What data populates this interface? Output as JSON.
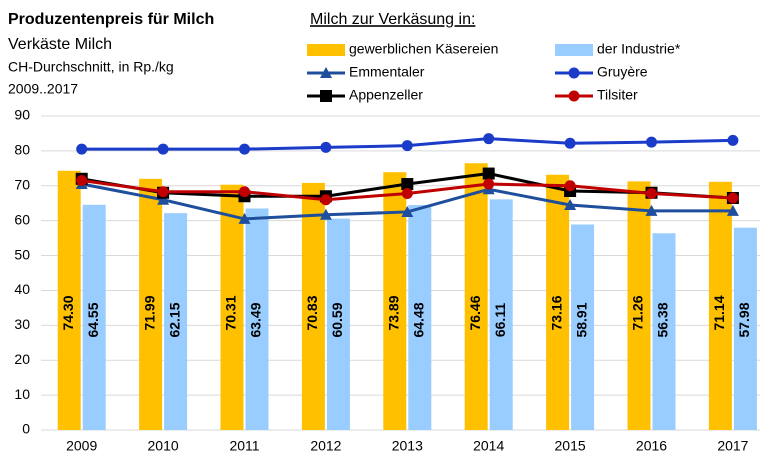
{
  "chart_data": {
    "type": "bar-line",
    "title": "Produzentenpreis für Milch",
    "subtitle": [
      "Verkäste Milch",
      "CH-Durchschnitt,  in Rp./kg",
      "2009..2017"
    ],
    "legend_title": "Milch zur Verkäsung in:",
    "categories": [
      "2009",
      "2010",
      "2011",
      "2012",
      "2013",
      "2014",
      "2015",
      "2016",
      "2017"
    ],
    "ylim": [
      0,
      90
    ],
    "yticks": [
      0,
      10,
      20,
      30,
      40,
      50,
      60,
      70,
      80,
      90
    ],
    "grid": true,
    "series": [
      {
        "name": "gewerblichen Käsereien",
        "kind": "bar",
        "color": "#ffc000",
        "values": [
          74.3,
          71.99,
          70.31,
          70.83,
          73.89,
          76.46,
          73.16,
          71.26,
          71.14
        ],
        "value_labels": [
          "74.30",
          "71.99",
          "70.31",
          "70.83",
          "73.89",
          "76.46",
          "73.16",
          "71.26",
          "71.14"
        ]
      },
      {
        "name": "der Industrie*",
        "kind": "bar",
        "color": "#99ccff",
        "values": [
          64.55,
          62.15,
          63.49,
          60.59,
          64.48,
          66.11,
          58.91,
          56.38,
          57.98
        ],
        "value_labels": [
          "64.55",
          "62.15",
          "63.49",
          "60.59",
          "64.48",
          "66.11",
          "58.91",
          "56.38",
          "57.98"
        ]
      },
      {
        "name": "Emmentaler",
        "kind": "line",
        "marker": "triangle",
        "color": "#1f4e9c",
        "values": [
          70.5,
          66,
          60.5,
          61.7,
          62.5,
          69,
          64.5,
          62.8,
          62.8
        ]
      },
      {
        "name": "Gruyère",
        "kind": "line",
        "marker": "circle",
        "color": "#1a3cc8",
        "values": [
          80.5,
          80.5,
          80.5,
          81,
          81.5,
          83.5,
          82.2,
          82.5,
          83
        ]
      },
      {
        "name": "Appenzeller",
        "kind": "line",
        "marker": "square",
        "color": "#000000",
        "values": [
          72,
          68,
          67,
          67,
          70.5,
          73.5,
          68.5,
          68,
          66.5
        ]
      },
      {
        "name": "Tilsiter",
        "kind": "line",
        "marker": "circle",
        "color": "#c00000",
        "values": [
          71.5,
          68.3,
          68.3,
          66,
          67.8,
          70.5,
          70,
          67.8,
          66.5
        ]
      }
    ]
  }
}
